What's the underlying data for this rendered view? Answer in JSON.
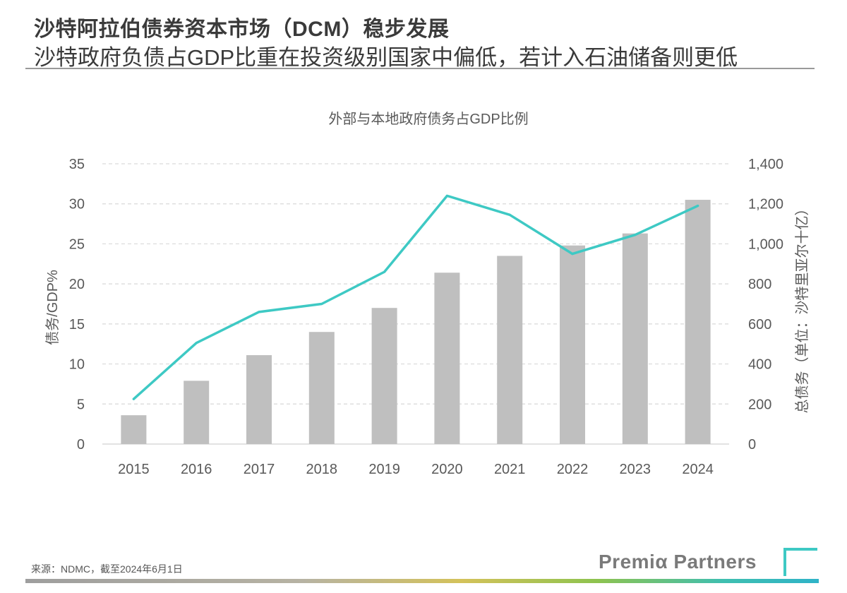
{
  "header": {
    "title": "沙特阿拉伯债券资本市场（DCM）稳步发展",
    "subtitle": "沙特政府负债占GDP比重在投资级别国家中偏低，若计入石油储备则更低"
  },
  "chart_data": {
    "type": "bar+line",
    "title": "外部与本地政府债务占GDP比例",
    "categories": [
      "2015",
      "2016",
      "2017",
      "2018",
      "2019",
      "2020",
      "2021",
      "2022",
      "2023",
      "2024"
    ],
    "series": [
      {
        "name": "债务/GDP%",
        "type": "bar",
        "axis": "left",
        "color": "#bfbfbf",
        "values": [
          3.6,
          7.9,
          11.1,
          14.0,
          17.0,
          21.4,
          23.5,
          24.8,
          26.3,
          30.5
        ]
      },
      {
        "name": "总债务（单位：沙特里亚尔十亿）",
        "type": "line",
        "axis": "right",
        "color": "#3ec9c4",
        "values": [
          225,
          505,
          660,
          700,
          860,
          1240,
          1145,
          950,
          1045,
          1190
        ]
      }
    ],
    "ylabel": "债务/GDP%",
    "ylim": [
      0,
      35
    ],
    "yticks": [
      "0",
      "5",
      "10",
      "15",
      "20",
      "25",
      "30",
      "35"
    ],
    "y2label": "总债务（单位：沙特里亚尔十亿）",
    "y2lim": [
      0,
      1400
    ],
    "y2ticks": [
      "0",
      "200",
      "400",
      "600",
      "800",
      "1,000",
      "1,200",
      "1,400"
    ],
    "grid": true
  },
  "footer": {
    "source": "来源：NDMC，截至2024年6月1日",
    "brand": "Premiα Partners"
  }
}
